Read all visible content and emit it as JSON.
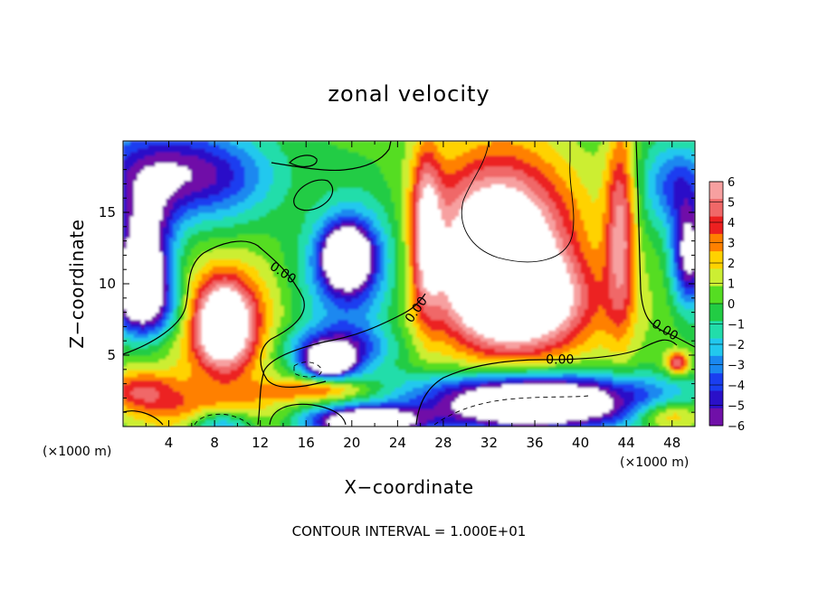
{
  "chart_data": {
    "type": "heatmap",
    "title": "zonal velocity",
    "xlabel": "X−coordinate",
    "ylabel": "Z−coordinate",
    "x_unit": "(×1000 m)",
    "z_unit": "(×1000 m)",
    "footer": "CONTOUR INTERVAL = 1.000E+01",
    "xlim": [
      0,
      50
    ],
    "ylim": [
      0,
      20
    ],
    "x_ticks": [
      4,
      8,
      12,
      16,
      20,
      24,
      28,
      32,
      36,
      40,
      44,
      48
    ],
    "x_tick_labels": [
      "4",
      "8",
      "12",
      "16",
      "20",
      "24",
      "28",
      "32",
      "36",
      "40",
      "44",
      "48"
    ],
    "y_ticks": [
      5,
      10,
      15
    ],
    "y_tick_labels": [
      "5",
      "10",
      "15"
    ],
    "colorbar": {
      "labels": [
        "6",
        "5",
        "4",
        "3",
        "2",
        "1",
        "0",
        "−1",
        "−2",
        "−3",
        "−4",
        "−5",
        "−6"
      ],
      "colors": [
        "#f7a0a0",
        "#f06868",
        "#ec2020",
        "#ff8000",
        "#ffd200",
        "#ccee33",
        "#55dd22",
        "#22cc44",
        "#22ddaa",
        "#22c8ee",
        "#1a88f0",
        "#1a3ef0",
        "#2a10c8",
        "#7010a8"
      ],
      "above_max_color": "#ffffff",
      "below_min_color": "#ffffff"
    },
    "contour_labels": [
      {
        "text": "0.00",
        "x": 14.0,
        "z": 10.8,
        "angle": 34
      },
      {
        "text": "0.00",
        "x": 25.6,
        "z": 8.2,
        "angle": -55
      },
      {
        "text": "0.00",
        "x": 38.2,
        "z": 4.7,
        "angle": 0
      },
      {
        "text": "0.00",
        "x": 47.4,
        "z": 6.8,
        "angle": 32
      }
    ],
    "blobs": [
      {
        "x": 2.5,
        "z": 18.0,
        "rx": 7.0,
        "ry": 3.5,
        "v": -4.5
      },
      {
        "x": 8.0,
        "z": 17.5,
        "rx": 6.0,
        "ry": 3.0,
        "v": -3.0
      },
      {
        "x": 2.0,
        "z": 14.0,
        "rx": 2.5,
        "ry": 3.0,
        "v": -5.0
      },
      {
        "x": 1.5,
        "z": 10.5,
        "rx": 2.5,
        "ry": 2.5,
        "v": -9.0
      },
      {
        "x": 2.0,
        "z": 8.0,
        "rx": 3.0,
        "ry": 2.0,
        "v": -5.0
      },
      {
        "x": 9.0,
        "z": 7.0,
        "rx": 4.5,
        "ry": 4.5,
        "v": 4.2
      },
      {
        "x": 8.8,
        "z": 7.2,
        "rx": 2.3,
        "ry": 2.8,
        "v": 6.0
      },
      {
        "x": 1.5,
        "z": 2.5,
        "rx": 3.5,
        "ry": 1.5,
        "v": 4.0
      },
      {
        "x": 8.0,
        "z": 0.8,
        "rx": 5.0,
        "ry": 1.6,
        "v": 4.0
      },
      {
        "x": 8.5,
        "z": 0.3,
        "rx": 3.0,
        "ry": 1.2,
        "v": -6.0
      },
      {
        "x": 20.0,
        "z": 11.0,
        "rx": 4.0,
        "ry": 4.5,
        "v": -5.0
      },
      {
        "x": 19.5,
        "z": 12.0,
        "rx": 2.0,
        "ry": 2.0,
        "v": -8.0
      },
      {
        "x": 18.5,
        "z": 5.5,
        "rx": 4.5,
        "ry": 1.6,
        "v": -5.0
      },
      {
        "x": 18.0,
        "z": 4.5,
        "rx": 2.0,
        "ry": 1.0,
        "v": -8.0
      },
      {
        "x": 17.0,
        "z": 2.6,
        "rx": 5.0,
        "ry": 0.8,
        "v": 3.5
      },
      {
        "x": 21.0,
        "z": 0.4,
        "rx": 5.0,
        "ry": 1.0,
        "v": -9.0
      },
      {
        "x": 26.5,
        "z": 14.0,
        "rx": 1.3,
        "ry": 6.0,
        "v": 5.0
      },
      {
        "x": 33.0,
        "z": 13.0,
        "rx": 6.0,
        "ry": 6.0,
        "v": 9.0
      },
      {
        "x": 35.0,
        "z": 8.5,
        "rx": 7.0,
        "ry": 3.5,
        "v": 6.0
      },
      {
        "x": 43.5,
        "z": 14.0,
        "rx": 1.3,
        "ry": 7.0,
        "v": 5.0
      },
      {
        "x": 36.0,
        "z": 2.8,
        "rx": 11.0,
        "ry": 1.3,
        "v": -5.0
      },
      {
        "x": 36.0,
        "z": 1.2,
        "rx": 10.0,
        "ry": 1.5,
        "v": -9.0
      },
      {
        "x": 48.5,
        "z": 4.5,
        "rx": 1.0,
        "ry": 0.8,
        "v": 5.0
      },
      {
        "x": 49.5,
        "z": 12.0,
        "rx": 1.5,
        "ry": 3.5,
        "v": -7.0
      },
      {
        "x": 48.5,
        "z": 17.0,
        "rx": 3.0,
        "ry": 3.0,
        "v": -4.0
      },
      {
        "x": 47.5,
        "z": 0.8,
        "rx": 3.0,
        "ry": 1.0,
        "v": 4.0
      }
    ]
  }
}
